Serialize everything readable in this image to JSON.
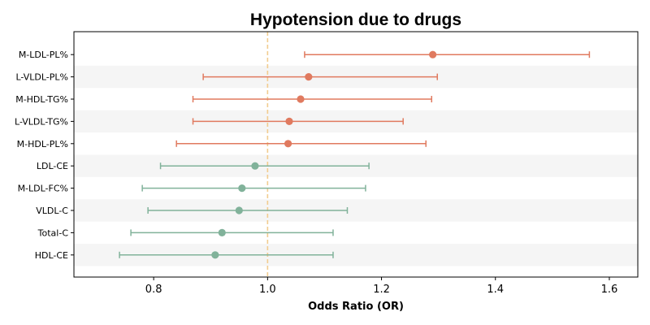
{
  "chart_data": {
    "type": "forest",
    "title": "Hypotension due to drugs",
    "xlabel": "Odds Ratio (OR)",
    "ylabel": "",
    "xlim": [
      0.66,
      1.65
    ],
    "xticks": [
      0.8,
      1.0,
      1.2,
      1.4,
      1.6
    ],
    "xtick_labels": [
      "0.8",
      "1.0",
      "1.2",
      "1.4",
      "1.6"
    ],
    "reference_line": 1.0,
    "grid": false,
    "alternating_row_bands": true,
    "colors": {
      "risk": "#e07a5f",
      "protective": "#81b29a",
      "reference_line": "#f2cc8f",
      "band": "#f5f5f5"
    },
    "rows": [
      {
        "label": "M-LDL-PL%",
        "or": 1.29,
        "lower": 1.065,
        "upper": 1.565,
        "group": "risk"
      },
      {
        "label": "L-VLDL-PL%",
        "or": 1.072,
        "lower": 0.887,
        "upper": 1.298,
        "group": "risk"
      },
      {
        "label": "M-HDL-TG%",
        "or": 1.058,
        "lower": 0.869,
        "upper": 1.288,
        "group": "risk"
      },
      {
        "label": "L-VLDL-TG%",
        "or": 1.038,
        "lower": 0.869,
        "upper": 1.238,
        "group": "risk"
      },
      {
        "label": "M-HDL-PL%",
        "or": 1.036,
        "lower": 0.84,
        "upper": 1.278,
        "group": "risk"
      },
      {
        "label": "LDL-CE",
        "or": 0.978,
        "lower": 0.812,
        "upper": 1.178,
        "group": "protective"
      },
      {
        "label": "M-LDL-FC%",
        "or": 0.955,
        "lower": 0.78,
        "upper": 1.172,
        "group": "protective"
      },
      {
        "label": "VLDL-C",
        "or": 0.95,
        "lower": 0.79,
        "upper": 1.14,
        "group": "protective"
      },
      {
        "label": "Total-C",
        "or": 0.92,
        "lower": 0.76,
        "upper": 1.115,
        "group": "protective"
      },
      {
        "label": "HDL-CE",
        "or": 0.908,
        "lower": 0.74,
        "upper": 1.115,
        "group": "protective"
      }
    ]
  }
}
